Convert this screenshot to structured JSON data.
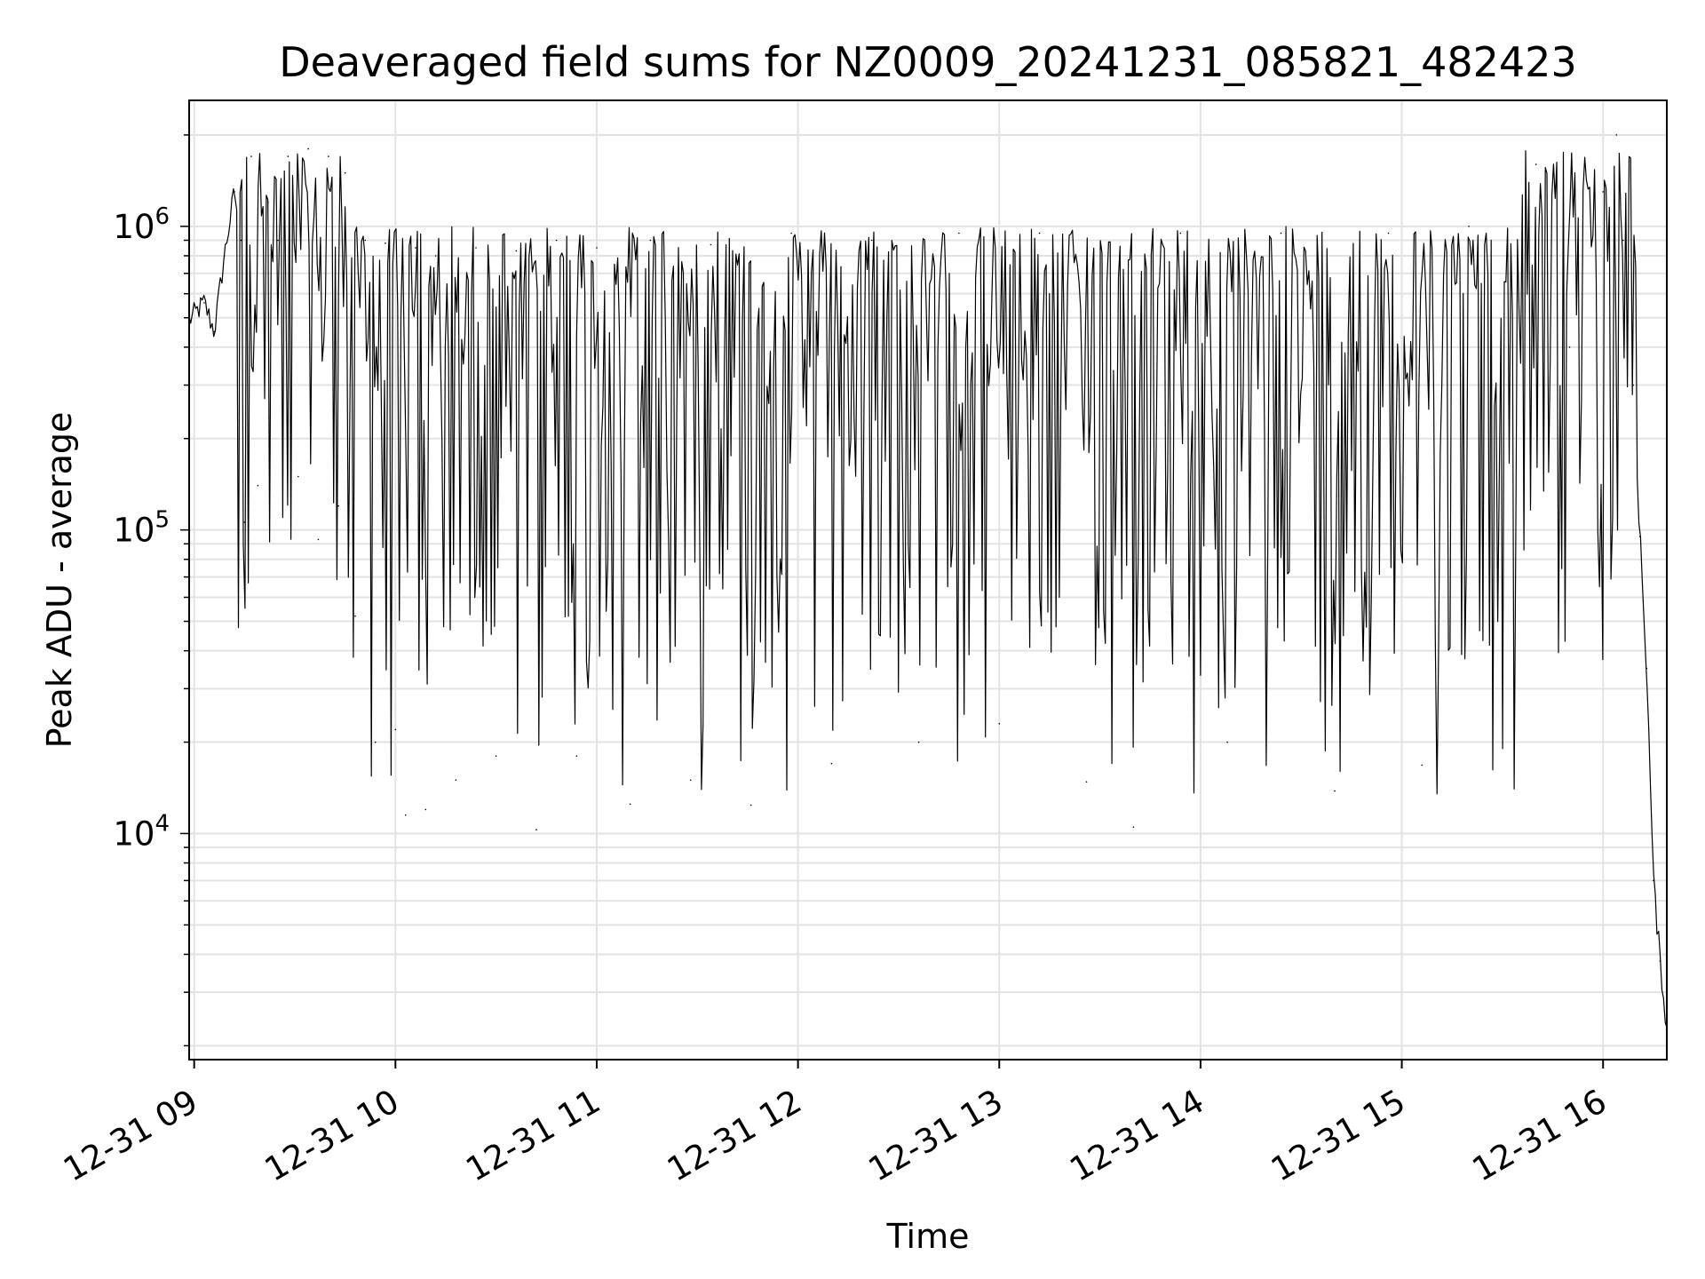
{
  "chart_data": {
    "type": "line",
    "title": "Deaveraged field sums for NZ0009_20241231_085821_482423",
    "xlabel": "Time",
    "ylabel": "Peak ADU - average",
    "y_scale": "log",
    "ylim": [
      1800,
      2600000
    ],
    "xlim": [
      "2024-12-31 08:58:30",
      "2024-12-31 16:19:00"
    ],
    "grid": true,
    "legend": "none",
    "x_ticks": [
      {
        "time": "2024-12-31 09:00",
        "label": "12-31 09"
      },
      {
        "time": "2024-12-31 10:00",
        "label": "12-31 10"
      },
      {
        "time": "2024-12-31 11:00",
        "label": "12-31 11"
      },
      {
        "time": "2024-12-31 12:00",
        "label": "12-31 12"
      },
      {
        "time": "2024-12-31 13:00",
        "label": "12-31 13"
      },
      {
        "time": "2024-12-31 14:00",
        "label": "12-31 14"
      },
      {
        "time": "2024-12-31 15:00",
        "label": "12-31 15"
      },
      {
        "time": "2024-12-31 16:00",
        "label": "12-31 16"
      }
    ],
    "y_ticks": [
      {
        "value": 10000,
        "base": "10",
        "exp": "4"
      },
      {
        "value": 100000,
        "base": "10",
        "exp": "5"
      },
      {
        "value": 1000000,
        "base": "10",
        "exp": "6"
      }
    ],
    "series": [
      {
        "color": "#000000",
        "points": [
          [
            "2024-12-31 08:58:30",
            490000
          ],
          [
            "2024-12-31 09:03:00",
            560000
          ],
          [
            "2024-12-31 09:06:00",
            450000
          ],
          [
            "2024-12-31 09:09:00",
            800000
          ],
          [
            "2024-12-31 09:12:00",
            1300000
          ],
          [
            "2024-12-31 09:14:00",
            900000
          ],
          [
            "2024-12-31 09:15:00",
            106000
          ],
          [
            "2024-12-31 09:17:00",
            1700000
          ],
          [
            "2024-12-31 09:19:00",
            140000
          ],
          [
            "2024-12-31 09:22:00",
            1200000
          ],
          [
            "2024-12-31 09:25:00",
            900000
          ],
          [
            "2024-12-31 09:28:00",
            1700000
          ],
          [
            "2024-12-31 09:31:00",
            150000
          ],
          [
            "2024-12-31 09:34:00",
            1800000
          ],
          [
            "2024-12-31 09:37:00",
            93000
          ],
          [
            "2024-12-31 09:40:00",
            1700000
          ],
          [
            "2024-12-31 09:43:00",
            120000
          ],
          [
            "2024-12-31 09:45:00",
            1500000
          ],
          [
            "2024-12-31 09:48:00",
            52000
          ],
          [
            "2024-12-31 09:51:00",
            900000
          ],
          [
            "2024-12-31 09:54:00",
            20000
          ],
          [
            "2024-12-31 09:57:00",
            880000
          ],
          [
            "2024-12-31 10:00:00",
            22000
          ],
          [
            "2024-12-31 10:03:00",
            11500
          ],
          [
            "2024-12-31 10:06:00",
            850000
          ],
          [
            "2024-12-31 10:09:00",
            12000
          ],
          [
            "2024-12-31 10:12:00",
            800000
          ],
          [
            "2024-12-31 10:18:00",
            15000
          ],
          [
            "2024-12-31 10:24:00",
            850000
          ],
          [
            "2024-12-31 10:30:00",
            18000
          ],
          [
            "2024-12-31 10:36:00",
            830000
          ],
          [
            "2024-12-31 10:42:00",
            10300
          ],
          [
            "2024-12-31 10:48:00",
            900000
          ],
          [
            "2024-12-31 10:54:00",
            18000
          ],
          [
            "2024-12-31 11:00:00",
            850000
          ],
          [
            "2024-12-31 11:10:00",
            12500
          ],
          [
            "2024-12-31 11:16:00",
            900000
          ],
          [
            "2024-12-31 11:28:00",
            15000
          ],
          [
            "2024-12-31 11:34:00",
            870000
          ],
          [
            "2024-12-31 11:46:00",
            12400
          ],
          [
            "2024-12-31 11:58:00",
            950000
          ],
          [
            "2024-12-31 12:10:00",
            17000
          ],
          [
            "2024-12-31 12:22:00",
            900000
          ],
          [
            "2024-12-31 12:36:00",
            20000
          ],
          [
            "2024-12-31 12:48:00",
            950000
          ],
          [
            "2024-12-31 13:00:00",
            23000
          ],
          [
            "2024-12-31 13:12:00",
            950000
          ],
          [
            "2024-12-31 13:26:00",
            14800
          ],
          [
            "2024-12-31 13:40:00",
            10500
          ],
          [
            "2024-12-31 13:54:00",
            950000
          ],
          [
            "2024-12-31 14:08:00",
            20000
          ],
          [
            "2024-12-31 14:24:00",
            950000
          ],
          [
            "2024-12-31 14:40:00",
            13800
          ],
          [
            "2024-12-31 14:56:00",
            950000
          ],
          [
            "2024-12-31 15:06:00",
            16800
          ],
          [
            "2024-12-31 15:20:00",
            1000000
          ],
          [
            "2024-12-31 15:30:00",
            42000
          ],
          [
            "2024-12-31 15:40:00",
            1600000
          ],
          [
            "2024-12-31 15:50:00",
            400000
          ],
          [
            "2024-12-31 16:00:00",
            1300000
          ],
          [
            "2024-12-31 16:04:00",
            2000000
          ],
          [
            "2024-12-31 16:06:00",
            900000
          ],
          [
            "2024-12-31 16:09:00",
            300000
          ],
          [
            "2024-12-31 16:11:00",
            95000
          ],
          [
            "2024-12-31 16:13:00",
            35000
          ],
          [
            "2024-12-31 16:15:00",
            7000
          ],
          [
            "2024-12-31 16:17:00",
            3800
          ],
          [
            "2024-12-31 16:19:00",
            2300
          ]
        ]
      }
    ]
  }
}
